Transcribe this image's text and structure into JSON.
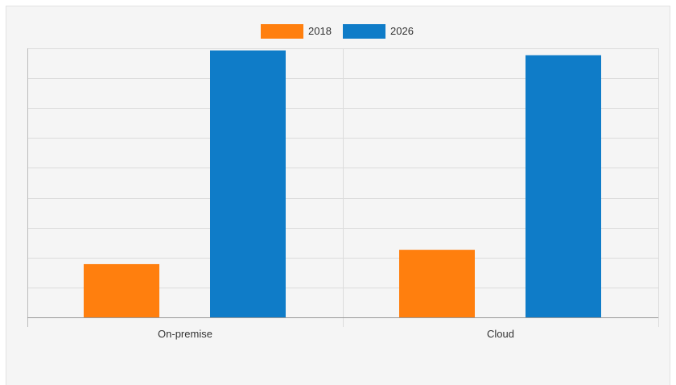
{
  "chart_data": {
    "type": "bar",
    "categories": [
      "On-premise",
      "Cloud"
    ],
    "series": [
      {
        "name": "2018",
        "values": [
          17.8,
          22.6
        ]
      },
      {
        "name": "2026",
        "values": [
          89.3,
          87.7
        ]
      }
    ],
    "title": "",
    "xlabel": "",
    "ylabel": "",
    "ylim": [
      0,
      90
    ],
    "grid": true,
    "legend_position": "top-center",
    "colors": {
      "2018": "#ff7f0e",
      "2026": "#0f7cc8"
    }
  }
}
